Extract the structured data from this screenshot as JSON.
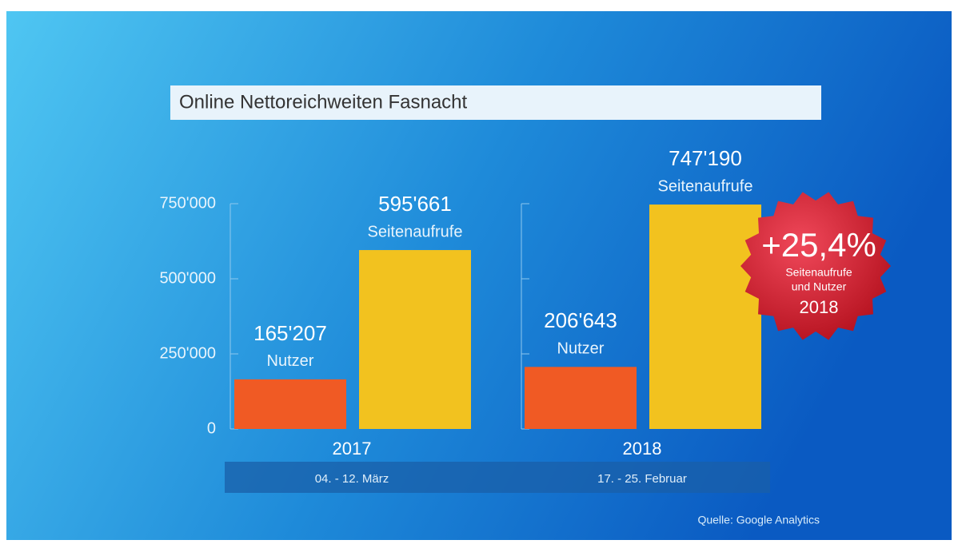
{
  "chart_data": {
    "type": "bar",
    "title": "Online Nettoreichweiten Fasnacht",
    "categories": [
      "2017",
      "2018"
    ],
    "category_dates": [
      "04. - 12. März",
      "17. - 25. Februar"
    ],
    "series": [
      {
        "name": "Nutzer",
        "color": "#f05a24",
        "values": [
          165207,
          206643
        ],
        "value_labels": [
          "165'207",
          "206'643"
        ]
      },
      {
        "name": "Seitenaufrufe",
        "color": "#f2c21f",
        "values": [
          595661,
          747190
        ],
        "value_labels": [
          "595'661",
          "747'190"
        ]
      }
    ],
    "ylim": [
      0,
      750000
    ],
    "yticks": [
      0,
      {
        "value": 250000,
        "label": "250'000"
      },
      {
        "value": 500000,
        "label": "500'000"
      },
      {
        "value": 750000,
        "label": "750'000"
      }
    ],
    "annotation": {
      "lines": [
        "+25,4%",
        "Seitenaufrufe",
        "und Nutzer",
        "2018"
      ]
    },
    "source": "Quelle: Google Analytics"
  }
}
